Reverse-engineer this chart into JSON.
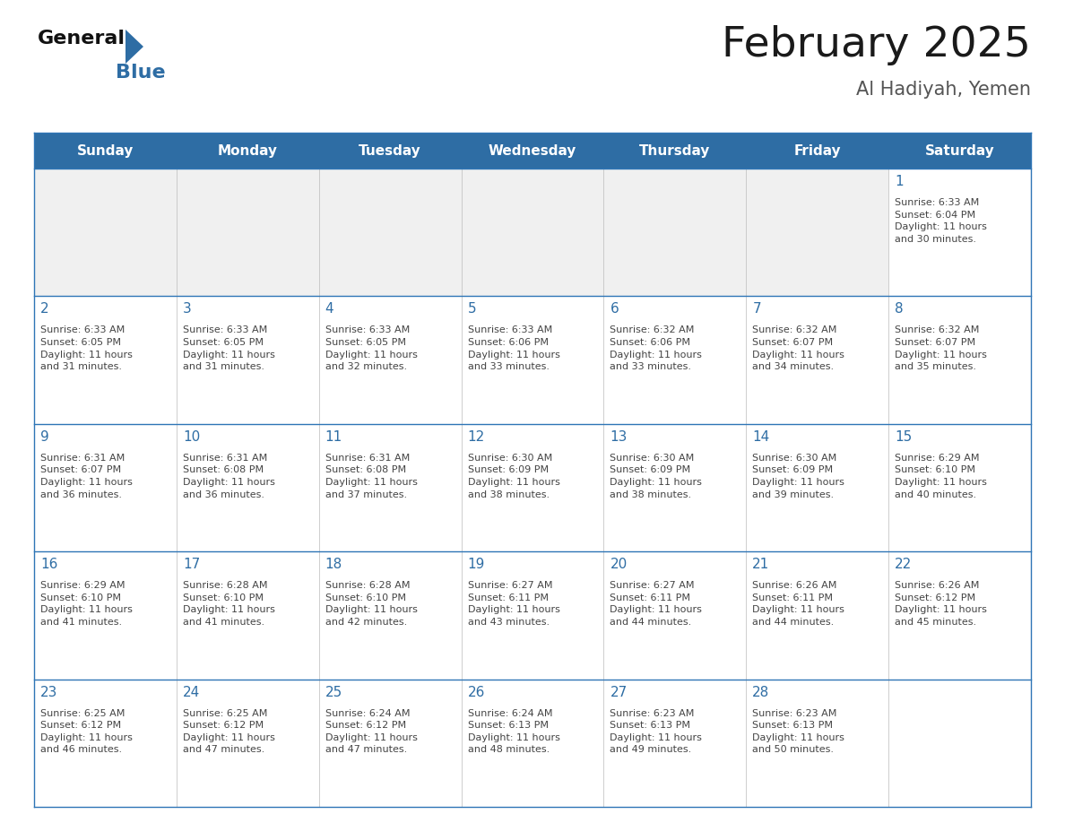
{
  "title": "February 2025",
  "subtitle": "Al Hadiyah, Yemen",
  "header_bg": "#2E6DA4",
  "header_text": "#FFFFFF",
  "cell_bg_white": "#FFFFFF",
  "cell_bg_gray": "#F0F0F0",
  "border_color": "#2E6DA4",
  "row_line_color": "#2E75B6",
  "col_line_color": "#BBBBBB",
  "day_names": [
    "Sunday",
    "Monday",
    "Tuesday",
    "Wednesday",
    "Thursday",
    "Friday",
    "Saturday"
  ],
  "title_color": "#1a1a1a",
  "subtitle_color": "#555555",
  "day_num_color": "#2E6DA4",
  "cell_text_color": "#444444",
  "weeks": [
    [
      {
        "day": null,
        "info": null
      },
      {
        "day": null,
        "info": null
      },
      {
        "day": null,
        "info": null
      },
      {
        "day": null,
        "info": null
      },
      {
        "day": null,
        "info": null
      },
      {
        "day": null,
        "info": null
      },
      {
        "day": 1,
        "info": "Sunrise: 6:33 AM\nSunset: 6:04 PM\nDaylight: 11 hours\nand 30 minutes."
      }
    ],
    [
      {
        "day": 2,
        "info": "Sunrise: 6:33 AM\nSunset: 6:05 PM\nDaylight: 11 hours\nand 31 minutes."
      },
      {
        "day": 3,
        "info": "Sunrise: 6:33 AM\nSunset: 6:05 PM\nDaylight: 11 hours\nand 31 minutes."
      },
      {
        "day": 4,
        "info": "Sunrise: 6:33 AM\nSunset: 6:05 PM\nDaylight: 11 hours\nand 32 minutes."
      },
      {
        "day": 5,
        "info": "Sunrise: 6:33 AM\nSunset: 6:06 PM\nDaylight: 11 hours\nand 33 minutes."
      },
      {
        "day": 6,
        "info": "Sunrise: 6:32 AM\nSunset: 6:06 PM\nDaylight: 11 hours\nand 33 minutes."
      },
      {
        "day": 7,
        "info": "Sunrise: 6:32 AM\nSunset: 6:07 PM\nDaylight: 11 hours\nand 34 minutes."
      },
      {
        "day": 8,
        "info": "Sunrise: 6:32 AM\nSunset: 6:07 PM\nDaylight: 11 hours\nand 35 minutes."
      }
    ],
    [
      {
        "day": 9,
        "info": "Sunrise: 6:31 AM\nSunset: 6:07 PM\nDaylight: 11 hours\nand 36 minutes."
      },
      {
        "day": 10,
        "info": "Sunrise: 6:31 AM\nSunset: 6:08 PM\nDaylight: 11 hours\nand 36 minutes."
      },
      {
        "day": 11,
        "info": "Sunrise: 6:31 AM\nSunset: 6:08 PM\nDaylight: 11 hours\nand 37 minutes."
      },
      {
        "day": 12,
        "info": "Sunrise: 6:30 AM\nSunset: 6:09 PM\nDaylight: 11 hours\nand 38 minutes."
      },
      {
        "day": 13,
        "info": "Sunrise: 6:30 AM\nSunset: 6:09 PM\nDaylight: 11 hours\nand 38 minutes."
      },
      {
        "day": 14,
        "info": "Sunrise: 6:30 AM\nSunset: 6:09 PM\nDaylight: 11 hours\nand 39 minutes."
      },
      {
        "day": 15,
        "info": "Sunrise: 6:29 AM\nSunset: 6:10 PM\nDaylight: 11 hours\nand 40 minutes."
      }
    ],
    [
      {
        "day": 16,
        "info": "Sunrise: 6:29 AM\nSunset: 6:10 PM\nDaylight: 11 hours\nand 41 minutes."
      },
      {
        "day": 17,
        "info": "Sunrise: 6:28 AM\nSunset: 6:10 PM\nDaylight: 11 hours\nand 41 minutes."
      },
      {
        "day": 18,
        "info": "Sunrise: 6:28 AM\nSunset: 6:10 PM\nDaylight: 11 hours\nand 42 minutes."
      },
      {
        "day": 19,
        "info": "Sunrise: 6:27 AM\nSunset: 6:11 PM\nDaylight: 11 hours\nand 43 minutes."
      },
      {
        "day": 20,
        "info": "Sunrise: 6:27 AM\nSunset: 6:11 PM\nDaylight: 11 hours\nand 44 minutes."
      },
      {
        "day": 21,
        "info": "Sunrise: 6:26 AM\nSunset: 6:11 PM\nDaylight: 11 hours\nand 44 minutes."
      },
      {
        "day": 22,
        "info": "Sunrise: 6:26 AM\nSunset: 6:12 PM\nDaylight: 11 hours\nand 45 minutes."
      }
    ],
    [
      {
        "day": 23,
        "info": "Sunrise: 6:25 AM\nSunset: 6:12 PM\nDaylight: 11 hours\nand 46 minutes."
      },
      {
        "day": 24,
        "info": "Sunrise: 6:25 AM\nSunset: 6:12 PM\nDaylight: 11 hours\nand 47 minutes."
      },
      {
        "day": 25,
        "info": "Sunrise: 6:24 AM\nSunset: 6:12 PM\nDaylight: 11 hours\nand 47 minutes."
      },
      {
        "day": 26,
        "info": "Sunrise: 6:24 AM\nSunset: 6:13 PM\nDaylight: 11 hours\nand 48 minutes."
      },
      {
        "day": 27,
        "info": "Sunrise: 6:23 AM\nSunset: 6:13 PM\nDaylight: 11 hours\nand 49 minutes."
      },
      {
        "day": 28,
        "info": "Sunrise: 6:23 AM\nSunset: 6:13 PM\nDaylight: 11 hours\nand 50 minutes."
      },
      {
        "day": null,
        "info": null
      }
    ]
  ],
  "logo_text_general": "General",
  "logo_text_blue": "Blue",
  "logo_color_general": "#111111",
  "logo_color_blue": "#2E6DA4",
  "logo_triangle_color": "#2E6DA4",
  "header_fontsize": 11,
  "day_num_fontsize": 11,
  "cell_info_fontsize": 8.0,
  "title_fontsize": 34,
  "subtitle_fontsize": 15
}
